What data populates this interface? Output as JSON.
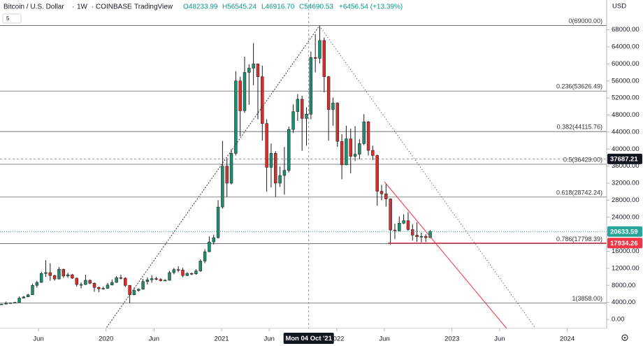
{
  "chart_data": {
    "type": "candlestick",
    "title": "Bitcoin / U.S. Dollar",
    "interval": "1W",
    "exchange": "COINBASE",
    "source": "TradingView",
    "ohlc_text": {
      "open": "O48233.99",
      "high": "H56545.24",
      "low": "L46916.70",
      "close": "C54690.53",
      "change": "+6456.54 (+13.39%)"
    },
    "indicator_badge": "5",
    "currency": "USD",
    "up_color": "#1e8c6e",
    "down_color": "#d32f2f",
    "wick_color": "#1a1a1a",
    "xlim": [
      "2019-01-30",
      "2024-05-05"
    ],
    "xticks": [
      {
        "value": "2019-06-01",
        "label": "Jun"
      },
      {
        "value": "2020-01-01",
        "label": "2020"
      },
      {
        "value": "2020-06-01",
        "label": "Jun"
      },
      {
        "value": "2021-01-01",
        "label": "2021"
      },
      {
        "value": "2021-06-01",
        "label": "Jun"
      },
      {
        "value": "2022-01-01",
        "label": "2022"
      },
      {
        "value": "2022-06-01",
        "label": "Jun"
      },
      {
        "value": "2023-01-01",
        "label": "2023"
      },
      {
        "value": "2023-06-01",
        "label": "Jun"
      },
      {
        "value": "2024-01-01",
        "label": "2024"
      }
    ],
    "ylim": [
      -2130,
      75000
    ],
    "yticks": [
      {
        "value": 0,
        "label": "0.00"
      },
      {
        "value": 4000,
        "label": "4000.00"
      },
      {
        "value": 8000,
        "label": "8000.00"
      },
      {
        "value": 12000,
        "label": "12000.00"
      },
      {
        "value": 16000,
        "label": "16000.00"
      },
      {
        "value": 20000,
        "label": "20000.00"
      },
      {
        "value": 24000,
        "label": "24000.00"
      },
      {
        "value": 28000,
        "label": "28000.00"
      },
      {
        "value": 32000,
        "label": "32000.00"
      },
      {
        "value": 36000,
        "label": "36000.00"
      },
      {
        "value": 40000,
        "label": "40000.00"
      },
      {
        "value": 44000,
        "label": "44000.00"
      },
      {
        "value": 48000,
        "label": "48000.00"
      },
      {
        "value": 52000,
        "label": "52000.00"
      },
      {
        "value": 56000,
        "label": "56000.00"
      },
      {
        "value": 60000,
        "label": "60000.00"
      },
      {
        "value": 64000,
        "label": "64000.00"
      },
      {
        "value": 68000,
        "label": "68000.00"
      }
    ],
    "fib_levels": [
      {
        "value": 69000,
        "label": "0(69000.00)"
      },
      {
        "value": 53626.49,
        "label": "0.236(53626.49)"
      },
      {
        "value": 44115.76,
        "label": "0.382(44115.76)"
      },
      {
        "value": 36429,
        "label": "0.5(36429.00)"
      },
      {
        "value": 28742.24,
        "label": "0.618(28742.24)"
      },
      {
        "value": 17798.39,
        "label": "0.786(17798.39)"
      },
      {
        "value": 3858,
        "label": "1(3858.00)"
      }
    ],
    "crosshair": {
      "x": {
        "value": "2021-10-04",
        "label": "Mon 04 Oct '21"
      },
      "y": {
        "value": 37687.21,
        "label": "37687.21"
      }
    },
    "price_badges": [
      {
        "value": 20633.59,
        "label": "20633.59",
        "color": "#26a69a"
      },
      {
        "value": 17934.26,
        "label": "17934.26",
        "color": "#f23645"
      }
    ],
    "x": [
      "2019-02-04",
      "2019-02-18",
      "2019-03-04",
      "2019-03-18",
      "2019-04-01",
      "2019-04-15",
      "2019-04-29",
      "2019-05-13",
      "2019-05-27",
      "2019-06-10",
      "2019-06-24",
      "2019-07-08",
      "2019-07-22",
      "2019-08-05",
      "2019-08-19",
      "2019-09-02",
      "2019-09-16",
      "2019-09-30",
      "2019-10-14",
      "2019-10-28",
      "2019-11-11",
      "2019-11-25",
      "2019-12-09",
      "2019-12-23",
      "2020-01-06",
      "2020-01-20",
      "2020-02-03",
      "2020-02-17",
      "2020-03-02",
      "2020-03-16",
      "2020-03-30",
      "2020-04-13",
      "2020-04-27",
      "2020-05-11",
      "2020-05-25",
      "2020-06-08",
      "2020-06-22",
      "2020-07-06",
      "2020-07-20",
      "2020-08-03",
      "2020-08-17",
      "2020-08-31",
      "2020-09-14",
      "2020-09-28",
      "2020-10-12",
      "2020-10-26",
      "2020-11-09",
      "2020-11-23",
      "2020-12-07",
      "2020-12-21",
      "2021-01-04",
      "2021-01-18",
      "2021-02-01",
      "2021-02-15",
      "2021-03-01",
      "2021-03-15",
      "2021-03-29",
      "2021-04-12",
      "2021-04-26",
      "2021-05-10",
      "2021-05-24",
      "2021-06-07",
      "2021-06-21",
      "2021-07-05",
      "2021-07-19",
      "2021-08-02",
      "2021-08-16",
      "2021-08-30",
      "2021-09-13",
      "2021-09-27",
      "2021-10-11",
      "2021-10-25",
      "2021-11-08",
      "2021-11-22",
      "2021-12-06",
      "2021-12-20",
      "2022-01-03",
      "2022-01-17",
      "2022-01-31",
      "2022-02-14",
      "2022-02-28",
      "2022-03-14",
      "2022-03-28",
      "2022-04-11",
      "2022-04-25",
      "2022-05-09",
      "2022-05-23",
      "2022-06-06",
      "2022-06-20",
      "2022-07-04",
      "2022-07-18",
      "2022-08-01",
      "2022-08-15",
      "2022-08-29",
      "2022-09-12",
      "2022-09-26",
      "2022-10-10",
      "2022-10-24"
    ],
    "open": [
      3450,
      3600,
      3800,
      3900,
      4000,
      5000,
      5300,
      5800,
      8000,
      8700,
      10800,
      11000,
      10300,
      9500,
      11800,
      10200,
      10500,
      9700,
      8200,
      8200,
      9200,
      8500,
      7500,
      7200,
      7300,
      8100,
      8700,
      9800,
      9700,
      8000,
      5800,
      6800,
      7100,
      8900,
      9300,
      9600,
      9400,
      9100,
      9200,
      11000,
      11700,
      11600,
      10300,
      10800,
      10700,
      11400,
      13700,
      15900,
      18200,
      19200,
      26400,
      36000,
      32000,
      39000,
      56000,
      49000,
      58000,
      59000,
      60000,
      57000,
      46000,
      35700,
      39000,
      32000,
      33800,
      35000,
      44600,
      48800,
      51700,
      47200,
      48200,
      61500,
      61300,
      65500,
      57000,
      49300,
      50800,
      41800,
      36300,
      42400,
      38300,
      38800,
      41300,
      46400,
      39700,
      38500,
      30100,
      29500,
      28300,
      21000,
      20800,
      22600,
      23200,
      21100,
      19800,
      19400,
      19500,
      19200
    ],
    "high": [
      3700,
      4200,
      4000,
      4150,
      5400,
      5500,
      6000,
      8400,
      9100,
      11200,
      13900,
      13200,
      10500,
      12300,
      11900,
      10950,
      10700,
      9800,
      8700,
      10500,
      9400,
      8700,
      7700,
      7700,
      8600,
      9400,
      10200,
      10500,
      9900,
      8100,
      7500,
      7300,
      9500,
      9900,
      10400,
      10000,
      9700,
      9450,
      11400,
      12100,
      12500,
      12100,
      11100,
      11000,
      11800,
      14100,
      16500,
      19500,
      19900,
      28000,
      41900,
      37800,
      40000,
      58300,
      57000,
      61700,
      59900,
      64900,
      60100,
      59600,
      47000,
      41300,
      39500,
      35900,
      40500,
      45300,
      50500,
      52900,
      52500,
      49800,
      62900,
      67000,
      69000,
      66200,
      57200,
      52100,
      51000,
      43500,
      45500,
      44800,
      45400,
      42300,
      48200,
      46600,
      40800,
      38700,
      31600,
      31800,
      28400,
      22500,
      24200,
      24700,
      25200,
      22400,
      22800,
      20400,
      20000,
      21000
    ],
    "low": [
      3400,
      3550,
      3700,
      3850,
      4000,
      4950,
      5250,
      5750,
      7500,
      8600,
      10000,
      9100,
      9100,
      9400,
      9800,
      9800,
      9500,
      7700,
      7300,
      8100,
      8300,
      6500,
      6400,
      7000,
      7200,
      8000,
      8600,
      9400,
      7600,
      3858,
      5700,
      6500,
      7000,
      8200,
      8600,
      9200,
      8900,
      9000,
      9100,
      10600,
      11100,
      9900,
      10200,
      10400,
      10500,
      11200,
      13200,
      15800,
      17600,
      19000,
      26000,
      28800,
      31700,
      38500,
      43000,
      48500,
      50400,
      55000,
      47000,
      42000,
      30000,
      31000,
      28800,
      31100,
      29300,
      34500,
      43800,
      46600,
      39600,
      40800,
      47000,
      58000,
      60100,
      53300,
      42000,
      45500,
      40500,
      32900,
      36200,
      34300,
      37200,
      37600,
      40900,
      38500,
      37400,
      26700,
      28000,
      26500,
      17600,
      18900,
      20700,
      22400,
      20800,
      18500,
      18200,
      18100,
      18200,
      19100
    ],
    "close": [
      3600,
      3800,
      3900,
      4000,
      5000,
      5300,
      5800,
      8000,
      8700,
      10800,
      11000,
      10300,
      9500,
      11800,
      10200,
      10500,
      9700,
      8200,
      8200,
      9200,
      8500,
      7500,
      7200,
      7300,
      8100,
      8700,
      9800,
      9700,
      8000,
      5800,
      6800,
      7100,
      8900,
      9300,
      9600,
      9400,
      9100,
      9200,
      11000,
      11700,
      11600,
      10300,
      10800,
      10700,
      11400,
      13700,
      15900,
      18200,
      19200,
      26400,
      36000,
      32000,
      39000,
      56000,
      49000,
      58000,
      59000,
      60000,
      57000,
      46000,
      35700,
      39000,
      32000,
      33800,
      35000,
      44600,
      48800,
      51700,
      47200,
      48200,
      61500,
      61300,
      65500,
      57000,
      49300,
      50800,
      41800,
      36300,
      42400,
      38300,
      38800,
      41300,
      46400,
      39700,
      38500,
      30100,
      29500,
      28300,
      21000,
      20800,
      22600,
      23200,
      21100,
      19800,
      19400,
      19500,
      19200,
      20633.59
    ]
  }
}
